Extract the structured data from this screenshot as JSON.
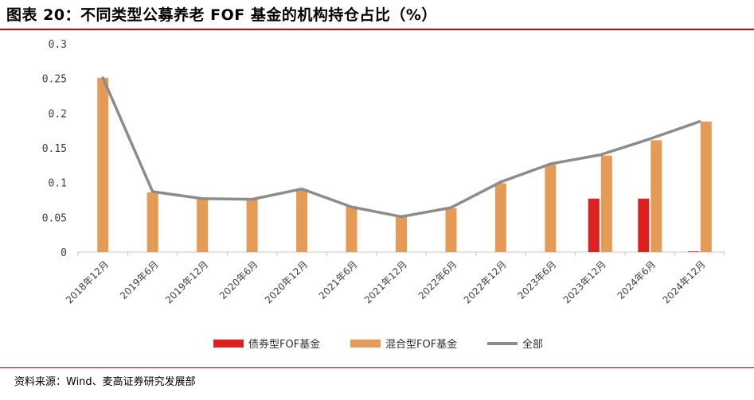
{
  "title": "图表 20：不同类型公募养老 FOF 基金的机构持仓占比（%）",
  "source": "资料来源：Wind、麦高证券研究发展部",
  "colors": {
    "bond": "#e02020",
    "mixed": "#e59a55",
    "all": "#8c8c8c",
    "accent": "#c00000"
  },
  "chart_data": {
    "type": "bar",
    "categories": [
      "2018年12月",
      "2019年6月",
      "2019年12月",
      "2020年6月",
      "2020年12月",
      "2021年6月",
      "2021年12月",
      "2022年6月",
      "2022年12月",
      "2023年6月",
      "2023年12月",
      "2024年6月",
      "2024年12月"
    ],
    "y_ticks": [
      "0",
      "0.05",
      "0.1",
      "0.15",
      "0.2",
      "0.25",
      "0.3"
    ],
    "ylim": [
      0,
      0.3
    ],
    "grid": false,
    "legend_position": "bottom",
    "series": [
      {
        "name": "债券型FOF基金",
        "type": "bar",
        "values": [
          null,
          null,
          null,
          null,
          null,
          null,
          null,
          null,
          null,
          null,
          0.077,
          0.077,
          0.001
        ]
      },
      {
        "name": "混合型FOF基金",
        "type": "bar",
        "values": [
          0.251,
          0.086,
          0.077,
          0.076,
          0.091,
          0.066,
          0.052,
          0.063,
          0.099,
          0.126,
          0.139,
          0.161,
          0.188
        ]
      },
      {
        "name": "全部",
        "type": "line",
        "values": [
          0.251,
          0.087,
          0.077,
          0.076,
          0.091,
          0.065,
          0.051,
          0.064,
          0.101,
          0.127,
          0.14,
          0.163,
          0.188
        ]
      }
    ]
  }
}
